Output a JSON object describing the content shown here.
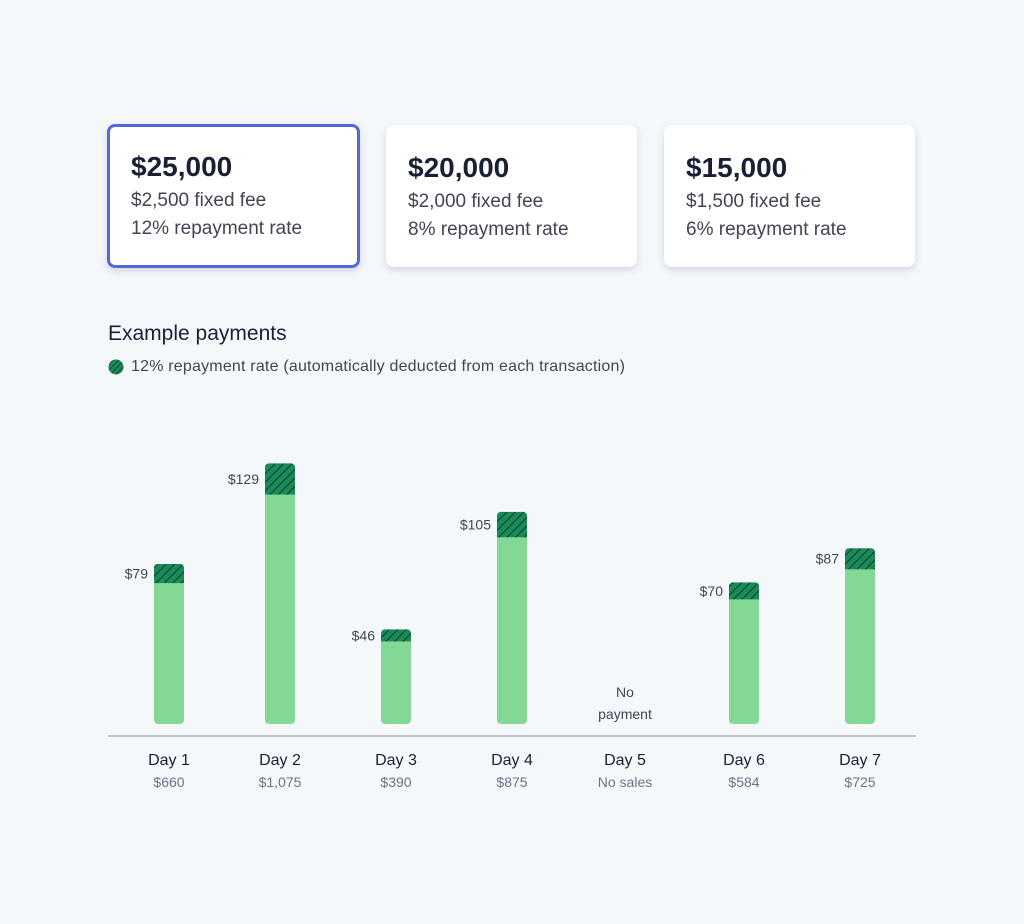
{
  "offers": [
    {
      "amount": "$25,000",
      "fee": "$2,500 fixed fee",
      "rate": "12% repayment rate",
      "selected": true
    },
    {
      "amount": "$20,000",
      "fee": "$2,000 fixed fee",
      "rate": "8% repayment rate",
      "selected": false
    },
    {
      "amount": "$15,000",
      "fee": "$1,500 fixed fee",
      "rate": "6% repayment rate",
      "selected": false
    }
  ],
  "section": {
    "title": "Example payments",
    "legend": "12% repayment rate (automatically deducted from each transaction)"
  },
  "colors": {
    "bar_fill": "#84d895",
    "repayment_fill": "#1b8a5a",
    "hatch_stroke": "#0f3d2b",
    "selected_border": "#5469d4",
    "axis": "#aab1bd"
  },
  "chart_data": {
    "type": "bar",
    "stacked": true,
    "title": "",
    "xlabel": "",
    "ylabel": "",
    "ylim": [
      0,
      1200
    ],
    "categories": [
      "Day 1",
      "Day 2",
      "Day 3",
      "Day 4",
      "Day 5",
      "Day 6",
      "Day 7"
    ],
    "sales_labels": [
      "$660",
      "$1,075",
      "$390",
      "$875",
      "No sales",
      "$584",
      "$725"
    ],
    "sales": [
      660,
      1075,
      390,
      875,
      0,
      584,
      725
    ],
    "repayments": [
      79,
      129,
      46,
      105,
      0,
      70,
      87
    ],
    "repayment_labels": [
      "$79",
      "$129",
      "$46",
      "$105",
      "",
      "$70",
      "$87"
    ],
    "empty_day_label": [
      "No",
      "payment"
    ],
    "series": [
      {
        "name": "12% repayment rate (automatically deducted from each transaction)",
        "values": [
          79,
          129,
          46,
          105,
          0,
          70,
          87
        ]
      }
    ],
    "grid": false
  }
}
